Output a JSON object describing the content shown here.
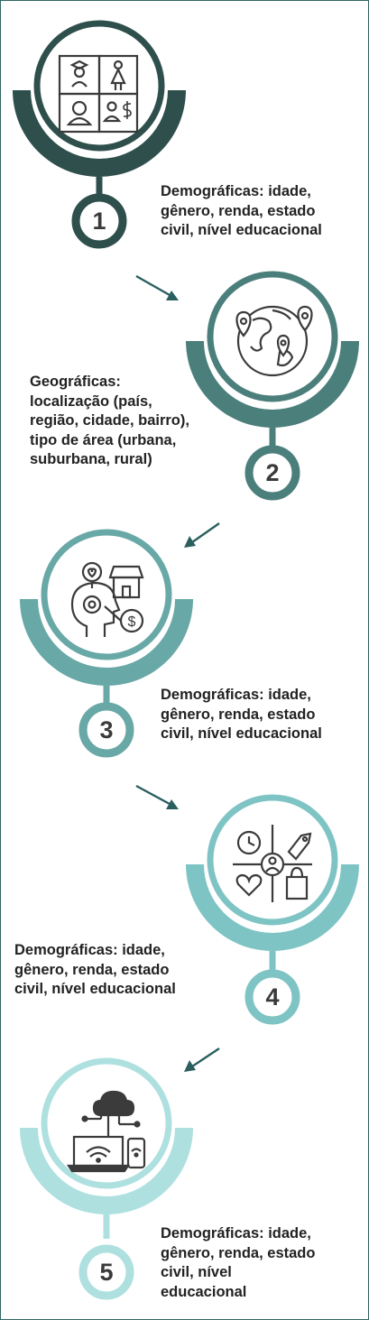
{
  "colors": {
    "step1": "#2e4f4c",
    "step2": "#4b7f7c",
    "step3": "#68a8a6",
    "step4": "#7fc4c4",
    "step5": "#aee0e0",
    "arrow": "#2a5e5f",
    "text": "#222222",
    "border": "#2f6664"
  },
  "steps": [
    {
      "number": "1",
      "icon": "demographics-grid-icon",
      "text_lines": [
        "Demográficas: idade,",
        "gênero, renda, estado",
        "civil, nível educacional"
      ]
    },
    {
      "number": "2",
      "icon": "globe-location-pins-icon",
      "text_lines": [
        "Geográficas:",
        "localização (país,",
        "região, cidade, bairro),",
        "tipo de área (urbana,",
        "suburbana, rural)"
      ]
    },
    {
      "number": "3",
      "icon": "mind-shopping-icon",
      "text_lines": [
        "Demográficas: idade,",
        "gênero, renda, estado",
        "civil, nível educacional"
      ]
    },
    {
      "number": "4",
      "icon": "behavior-quadrant-icon",
      "text_lines": [
        "Demográficas: idade,",
        "gênero, renda, estado",
        "civil, nível educacional"
      ]
    },
    {
      "number": "5",
      "icon": "cloud-devices-icon",
      "text_lines": [
        "Demográficas: idade,",
        "gênero, renda, estado",
        "civil, nível",
        "educacional"
      ]
    }
  ]
}
